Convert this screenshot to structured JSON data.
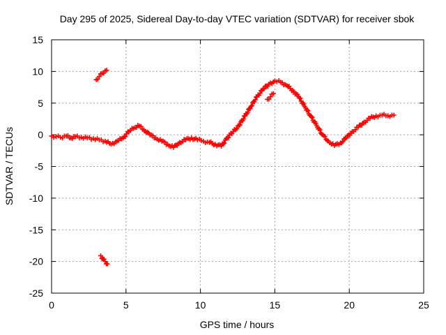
{
  "chart_data": {
    "type": "scatter",
    "title": "Day 295 of 2025, Sidereal Day-to-day VTEC variation (SDTVAR) for receiver sbok",
    "xlabel": "GPS time / hours",
    "ylabel": "SDTVAR / TECUs",
    "xlim": [
      0,
      25
    ],
    "ylim": [
      -25,
      15
    ],
    "xticks": [
      0,
      5,
      10,
      15,
      20,
      25
    ],
    "yticks": [
      15,
      10,
      5,
      0,
      -5,
      -10,
      -15,
      -20,
      -25
    ],
    "xtick_labels": [
      "0",
      "5",
      "10",
      "15",
      "20",
      "25"
    ],
    "ytick_labels": [
      "15",
      "10",
      "5",
      "0",
      "-5",
      "-10",
      "-15",
      "-20",
      "-25"
    ],
    "grid": true,
    "marker": "+",
    "series": [
      {
        "name": "SDTVAR",
        "color": "#ff0000",
        "x": [
          0.0,
          0.3,
          0.6,
          1.0,
          1.3,
          1.6,
          2.0,
          2.4,
          2.8,
          3.2,
          3.6,
          4.0,
          4.4,
          4.8,
          5.2,
          5.5,
          5.8,
          6.2,
          6.6,
          7.0,
          7.4,
          7.8,
          8.2,
          8.6,
          9.0,
          9.4,
          9.8,
          10.2,
          10.6,
          11.0,
          11.4,
          11.8,
          12.2,
          12.6,
          13.0,
          13.4,
          13.8,
          14.2,
          14.6,
          15.0,
          15.4,
          15.8,
          16.2,
          16.6,
          17.0,
          17.4,
          17.8,
          18.2,
          18.6,
          19.0,
          19.4,
          19.8,
          20.2,
          20.6,
          21.0,
          21.4,
          21.8,
          22.2,
          22.6,
          23.0
        ],
        "y": [
          -0.2,
          -0.3,
          -0.4,
          -0.2,
          -0.5,
          -0.3,
          -0.4,
          -0.5,
          -0.6,
          -0.8,
          -1.0,
          -1.5,
          -1.0,
          -0.5,
          0.5,
          1.0,
          1.5,
          0.8,
          0.0,
          -0.5,
          -1.0,
          -1.5,
          -2.0,
          -1.2,
          -0.8,
          -0.5,
          -0.8,
          -1.0,
          -1.2,
          -1.5,
          -1.8,
          -0.5,
          0.5,
          1.5,
          3.0,
          4.5,
          6.0,
          7.2,
          8.0,
          8.5,
          8.3,
          7.8,
          7.0,
          6.0,
          4.5,
          3.0,
          1.5,
          0.0,
          -1.0,
          -1.7,
          -1.3,
          -0.5,
          0.5,
          1.2,
          2.0,
          2.6,
          3.0,
          3.1,
          3.0,
          3.1
        ]
      },
      {
        "name": "SDTVAR-segment-upper",
        "color": "#ff0000",
        "x": [
          3.0,
          3.2,
          3.4,
          3.6,
          3.7
        ],
        "y": [
          8.7,
          9.2,
          9.7,
          10.1,
          10.2
        ]
      },
      {
        "name": "SDTVAR-segment-lower",
        "color": "#ff0000",
        "x": [
          3.3,
          3.45,
          3.6,
          3.75
        ],
        "y": [
          -19.1,
          -19.6,
          -20.0,
          -20.4
        ]
      },
      {
        "name": "SDTVAR-segment-mid",
        "color": "#ff0000",
        "x": [
          14.5,
          14.7,
          14.9
        ],
        "y": [
          5.6,
          6.0,
          6.5
        ]
      }
    ]
  }
}
